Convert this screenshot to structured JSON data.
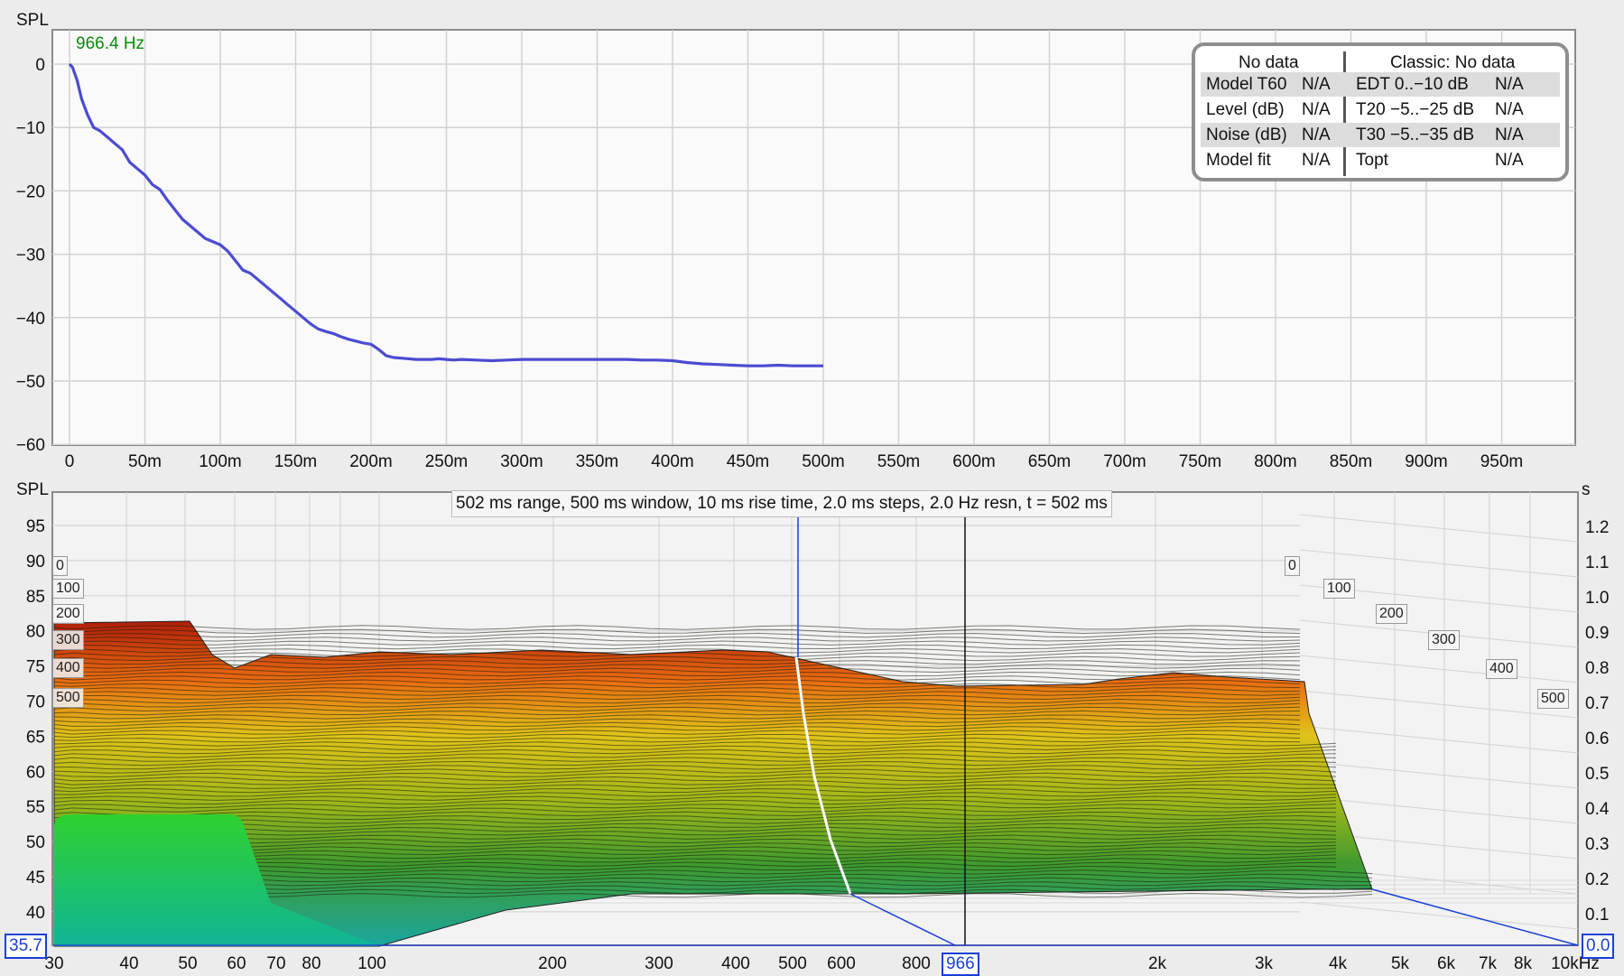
{
  "top_panel": {
    "y_axis_label": "SPL",
    "frequency_readout": "966.4 Hz",
    "y_ticks": [
      "0",
      "−10",
      "−20",
      "−30",
      "−40",
      "−50",
      "−60"
    ],
    "x_ticks": [
      "0",
      "50m",
      "100m",
      "150m",
      "200m",
      "250m",
      "300m",
      "350m",
      "400m",
      "450m",
      "500m",
      "550m",
      "600m",
      "650m",
      "700m",
      "750m",
      "800m",
      "850m",
      "900m",
      "950m"
    ],
    "decay_color": "#4b4bd2"
  },
  "chart_data": {
    "type": "line",
    "xlabel": "",
    "ylabel": "SPL",
    "xlim": [
      0,
      1000
    ],
    "ylim": [
      -60,
      0
    ],
    "series": [
      {
        "x": [
          0,
          2,
          5,
          8,
          12,
          16,
          20,
          25,
          30,
          35,
          40,
          45,
          50,
          55,
          60,
          65,
          70,
          75,
          80,
          85,
          90,
          95,
          100,
          105,
          110,
          115,
          120,
          125,
          130,
          135,
          140,
          145,
          150,
          155,
          160,
          165,
          170,
          175,
          180,
          185,
          190,
          195,
          200,
          205,
          210,
          215,
          220,
          225,
          230,
          235,
          240,
          245,
          250,
          255,
          260,
          270,
          280,
          290,
          300,
          310,
          320,
          330,
          340,
          350,
          360,
          370,
          380,
          390,
          400,
          410,
          420,
          430,
          440,
          450,
          460,
          470,
          480,
          490,
          500
        ],
        "y": [
          0,
          -0.5,
          -2.5,
          -5.5,
          -8,
          -10,
          -10.5,
          -11.5,
          -12.5,
          -13.5,
          -15.5,
          -16.5,
          -17.5,
          -19,
          -19.8,
          -21.5,
          -23,
          -24.5,
          -25.5,
          -26.5,
          -27.5,
          -28,
          -28.5,
          -29.5,
          -31,
          -32.5,
          -33,
          -34,
          -35,
          -36,
          -37,
          -38,
          -39,
          -40,
          -41,
          -41.8,
          -42.2,
          -42.5,
          -43,
          -43.4,
          -43.7,
          -44,
          -44.2,
          -45,
          -46,
          -46.3,
          -46.4,
          -46.5,
          -46.6,
          -46.6,
          -46.6,
          -46.5,
          -46.6,
          -46.7,
          -46.6,
          -46.7,
          -46.8,
          -46.7,
          -46.6,
          -46.6,
          -46.6,
          -46.6,
          -46.6,
          -46.6,
          -46.6,
          -46.6,
          -46.7,
          -46.7,
          -46.8,
          -47.1,
          -47.3,
          -47.4,
          -47.5,
          -47.6,
          -47.6,
          -47.5,
          -47.6,
          -47.6,
          -47.6
        ]
      }
    ]
  },
  "info_box": {
    "left_header": "No data",
    "right_header": "Classic: No data",
    "rows": [
      {
        "l_label": "Model T60",
        "l_value": "N/A",
        "r_label": "EDT  0..−10 dB",
        "r_value": "N/A"
      },
      {
        "l_label": "Level (dB)",
        "l_value": "N/A",
        "r_label": "T20 −5..−25 dB",
        "r_value": "N/A"
      },
      {
        "l_label": "Noise (dB)",
        "l_value": "N/A",
        "r_label": "T30 −5..−35 dB",
        "r_value": "N/A"
      },
      {
        "l_label": "Model fit",
        "l_value": "N/A",
        "r_label": "Topt",
        "r_value": "N/A"
      }
    ]
  },
  "bottom_panel": {
    "y_axis_label": "SPL",
    "right_axis_label": "s",
    "caption": "502 ms range, 500 ms window, 10 ms rise time, 2.0 ms steps,  2.0 Hz resn, t = 502 ms",
    "y_ticks": [
      "95",
      "90",
      "85",
      "80",
      "75",
      "70",
      "65",
      "60",
      "55",
      "50",
      "45",
      "40"
    ],
    "right_ticks": [
      "1.2",
      "1.1",
      "1.0",
      "0.9",
      "0.8",
      "0.7",
      "0.6",
      "0.5",
      "0.4",
      "0.3",
      "0.2",
      "0.1"
    ],
    "x_ticks": [
      "30",
      "40",
      "50",
      "60",
      "70",
      "80",
      "100",
      "200",
      "300",
      "400",
      "500",
      "600",
      "800",
      "2k",
      "3k",
      "4k",
      "5k",
      "6k",
      "7k",
      "8k",
      "10kHz"
    ],
    "left_slice_labels": [
      "0",
      "100",
      "200",
      "300",
      "400",
      "500"
    ],
    "right_slice_labels": [
      "0",
      "100",
      "200",
      "300",
      "400",
      "500"
    ],
    "spl_box_value": "35.7",
    "time_box_value": "0.0",
    "freq_box_value": "966"
  }
}
